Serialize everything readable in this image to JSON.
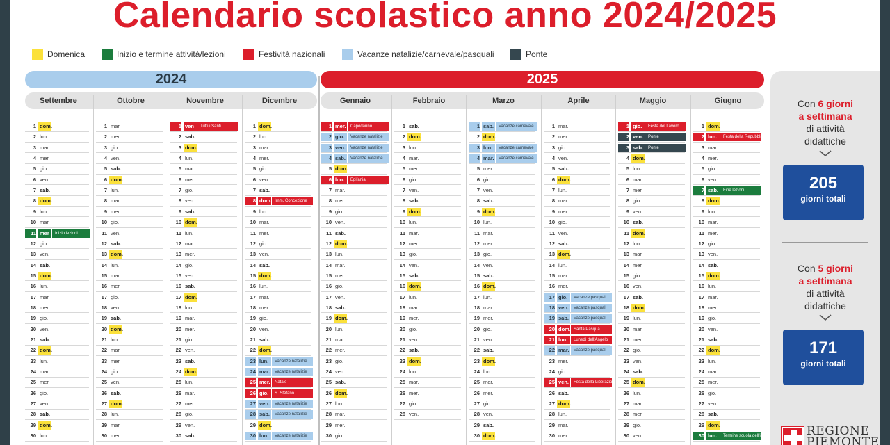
{
  "title": "Calendario scolastico anno 2024/2025",
  "legend": [
    {
      "label": "Domenica",
      "color": "#fbe13b",
      "x": 32
    },
    {
      "label": "Inizio e termine attività/lezioni",
      "color": "#1b7c3d",
      "x": 132
    },
    {
      "label": "Festività nazionali",
      "color": "#dc1e2b",
      "x": 336
    },
    {
      "label": "Vacanze natalizie/carnevale/pasquali",
      "color": "#a9cdec",
      "x": 478
    },
    {
      "label": "Ponte",
      "color": "#35474f",
      "x": 720
    }
  ],
  "years": {
    "y2024": "2024",
    "y2025": "2025"
  },
  "months": [
    {
      "name": "Settembre",
      "year": 2024,
      "m": 9,
      "days": [
        [
          1,
          "dom."
        ],
        [
          2,
          "lun."
        ],
        [
          3,
          "mar."
        ],
        [
          4,
          "mer."
        ],
        [
          5,
          "gio."
        ],
        [
          6,
          "ven."
        ],
        [
          7,
          "sab."
        ],
        [
          8,
          "dom."
        ],
        [
          9,
          "lun."
        ],
        [
          10,
          "mar."
        ],
        [
          11,
          "mer",
          "Inizio lezioni",
          "green"
        ],
        [
          12,
          "gio."
        ],
        [
          13,
          "ven."
        ],
        [
          14,
          "sab."
        ],
        [
          15,
          "dom."
        ],
        [
          16,
          "lun."
        ],
        [
          17,
          "mar."
        ],
        [
          18,
          "mer."
        ],
        [
          19,
          "gio."
        ],
        [
          20,
          "ven."
        ],
        [
          21,
          "sab."
        ],
        [
          22,
          "dom."
        ],
        [
          23,
          "lun."
        ],
        [
          24,
          "mar."
        ],
        [
          25,
          "mer."
        ],
        [
          26,
          "gio."
        ],
        [
          27,
          "ven."
        ],
        [
          28,
          "sab."
        ],
        [
          29,
          "dom."
        ],
        [
          30,
          "lun."
        ]
      ]
    },
    {
      "name": "Ottobre",
      "year": 2024,
      "m": 10,
      "days": [
        [
          1,
          "mar."
        ],
        [
          2,
          "mer."
        ],
        [
          3,
          "gio."
        ],
        [
          4,
          "ven."
        ],
        [
          5,
          "sab."
        ],
        [
          6,
          "dom."
        ],
        [
          7,
          "lun."
        ],
        [
          8,
          "mar."
        ],
        [
          9,
          "mer."
        ],
        [
          10,
          "gio."
        ],
        [
          11,
          "ven."
        ],
        [
          12,
          "sab."
        ],
        [
          13,
          "dom."
        ],
        [
          14,
          "lun."
        ],
        [
          15,
          "mar."
        ],
        [
          16,
          "mer."
        ],
        [
          17,
          "gio."
        ],
        [
          18,
          "ven."
        ],
        [
          19,
          "sab."
        ],
        [
          20,
          "dom."
        ],
        [
          21,
          "lun."
        ],
        [
          22,
          "mar."
        ],
        [
          23,
          "mer."
        ],
        [
          24,
          "gio."
        ],
        [
          25,
          "ven."
        ],
        [
          26,
          "sab."
        ],
        [
          27,
          "dom."
        ],
        [
          28,
          "lun."
        ],
        [
          29,
          "mar."
        ],
        [
          30,
          "mer."
        ]
      ]
    },
    {
      "name": "Novembre",
      "year": 2024,
      "m": 11,
      "days": [
        [
          1,
          "ven",
          "Tutti i Santi",
          "red"
        ],
        [
          2,
          "sab."
        ],
        [
          3,
          "dom."
        ],
        [
          4,
          "lun."
        ],
        [
          5,
          "mar."
        ],
        [
          6,
          "mer."
        ],
        [
          7,
          "gio."
        ],
        [
          8,
          "ven."
        ],
        [
          9,
          "sab."
        ],
        [
          10,
          "dom."
        ],
        [
          11,
          "lun."
        ],
        [
          12,
          "mar."
        ],
        [
          13,
          "mer."
        ],
        [
          14,
          "gio."
        ],
        [
          15,
          "ven."
        ],
        [
          16,
          "sab."
        ],
        [
          17,
          "dom."
        ],
        [
          18,
          "lun."
        ],
        [
          19,
          "mar."
        ],
        [
          20,
          "mer."
        ],
        [
          21,
          "gio."
        ],
        [
          22,
          "ven."
        ],
        [
          23,
          "sab."
        ],
        [
          24,
          "dom."
        ],
        [
          25,
          "lun."
        ],
        [
          26,
          "mar."
        ],
        [
          27,
          "mer."
        ],
        [
          28,
          "gio."
        ],
        [
          29,
          "ven."
        ],
        [
          30,
          "sab."
        ]
      ]
    },
    {
      "name": "Dicembre",
      "year": 2024,
      "m": 12,
      "days": [
        [
          1,
          "dom."
        ],
        [
          2,
          "lun."
        ],
        [
          3,
          "mar."
        ],
        [
          4,
          "mer."
        ],
        [
          5,
          "gio."
        ],
        [
          6,
          "ven."
        ],
        [
          7,
          "sab."
        ],
        [
          8,
          "dom.",
          "Imm. Concezione",
          "red"
        ],
        [
          9,
          "lun."
        ],
        [
          10,
          "mar."
        ],
        [
          11,
          "mer."
        ],
        [
          12,
          "gio."
        ],
        [
          13,
          "ven."
        ],
        [
          14,
          "sab."
        ],
        [
          15,
          "dom."
        ],
        [
          16,
          "lun."
        ],
        [
          17,
          "mar."
        ],
        [
          18,
          "mer."
        ],
        [
          19,
          "gio."
        ],
        [
          20,
          "ven."
        ],
        [
          21,
          "sab."
        ],
        [
          22,
          "dom."
        ],
        [
          23,
          "lun.",
          "Vacanze natalizie",
          "blue"
        ],
        [
          24,
          "mar.",
          "Vacanze natalizie",
          "blue"
        ],
        [
          25,
          "mer.",
          "Natale",
          "red"
        ],
        [
          26,
          "gio.",
          "S. Stefano",
          "red"
        ],
        [
          27,
          "ven.",
          "Vacanze natalizie",
          "blue"
        ],
        [
          28,
          "sab.",
          "Vacanze natalizie",
          "blue"
        ],
        [
          29,
          "dom."
        ],
        [
          30,
          "lun.",
          "Vacanze natalizie",
          "blue"
        ]
      ]
    },
    {
      "name": "Gennaio",
      "year": 2025,
      "m": 1,
      "days": [
        [
          1,
          "mer.",
          "Capodanno",
          "red"
        ],
        [
          2,
          "gio.",
          "Vacanze natalizie",
          "blue"
        ],
        [
          3,
          "ven.",
          "Vacanze natalizie",
          "blue"
        ],
        [
          4,
          "sab.",
          "Vacanze natalizie",
          "blue"
        ],
        [
          5,
          "dom."
        ],
        [
          6,
          "lun.",
          "Epifania",
          "red"
        ],
        [
          7,
          "mar."
        ],
        [
          8,
          "mer."
        ],
        [
          9,
          "gio."
        ],
        [
          10,
          "ven."
        ],
        [
          11,
          "sab."
        ],
        [
          12,
          "dom."
        ],
        [
          13,
          "lun."
        ],
        [
          14,
          "mar."
        ],
        [
          15,
          "mer."
        ],
        [
          16,
          "gio."
        ],
        [
          17,
          "ven."
        ],
        [
          18,
          "sab."
        ],
        [
          19,
          "dom."
        ],
        [
          20,
          "lun."
        ],
        [
          21,
          "mar."
        ],
        [
          22,
          "mer."
        ],
        [
          23,
          "gio."
        ],
        [
          24,
          "ven."
        ],
        [
          25,
          "sab."
        ],
        [
          26,
          "dom."
        ],
        [
          27,
          "lun."
        ],
        [
          28,
          "mar."
        ],
        [
          29,
          "mer."
        ],
        [
          30,
          "gio."
        ]
      ]
    },
    {
      "name": "Febbraio",
      "year": 2025,
      "m": 2,
      "days": [
        [
          1,
          "sab."
        ],
        [
          2,
          "dom."
        ],
        [
          3,
          "lun."
        ],
        [
          4,
          "mar."
        ],
        [
          5,
          "mer."
        ],
        [
          6,
          "gio."
        ],
        [
          7,
          "ven."
        ],
        [
          8,
          "sab."
        ],
        [
          9,
          "dom."
        ],
        [
          10,
          "lun."
        ],
        [
          11,
          "mar."
        ],
        [
          12,
          "mer."
        ],
        [
          13,
          "gio."
        ],
        [
          14,
          "ven."
        ],
        [
          15,
          "sab."
        ],
        [
          16,
          "dom."
        ],
        [
          17,
          "lun."
        ],
        [
          18,
          "mar."
        ],
        [
          19,
          "mer."
        ],
        [
          20,
          "gio."
        ],
        [
          21,
          "ven."
        ],
        [
          22,
          "sab."
        ],
        [
          23,
          "dom."
        ],
        [
          24,
          "lun."
        ],
        [
          25,
          "mar."
        ],
        [
          26,
          "mer."
        ],
        [
          27,
          "gio."
        ],
        [
          28,
          "ven."
        ]
      ]
    },
    {
      "name": "Marzo",
      "year": 2025,
      "m": 3,
      "days": [
        [
          1,
          "sab.",
          "Vacanze carnevale",
          "blue"
        ],
        [
          2,
          "dom."
        ],
        [
          3,
          "lun.",
          "Vacanze carnevale",
          "blue"
        ],
        [
          4,
          "mar.",
          "Vacanze carnevale",
          "blue"
        ],
        [
          5,
          "mer."
        ],
        [
          6,
          "gio."
        ],
        [
          7,
          "ven."
        ],
        [
          8,
          "sab."
        ],
        [
          9,
          "dom."
        ],
        [
          10,
          "lun."
        ],
        [
          11,
          "mar."
        ],
        [
          12,
          "mer."
        ],
        [
          13,
          "gio."
        ],
        [
          14,
          "ven."
        ],
        [
          15,
          "sab."
        ],
        [
          16,
          "dom."
        ],
        [
          17,
          "lun."
        ],
        [
          18,
          "mar."
        ],
        [
          19,
          "mer."
        ],
        [
          20,
          "gio."
        ],
        [
          21,
          "ven."
        ],
        [
          22,
          "sab."
        ],
        [
          23,
          "dom."
        ],
        [
          24,
          "lun."
        ],
        [
          25,
          "mar."
        ],
        [
          26,
          "mer."
        ],
        [
          27,
          "gio."
        ],
        [
          28,
          "ven."
        ],
        [
          29,
          "sab."
        ],
        [
          30,
          "dom."
        ]
      ]
    },
    {
      "name": "Aprile",
      "year": 2025,
      "m": 4,
      "days": [
        [
          1,
          "mar."
        ],
        [
          2,
          "mer."
        ],
        [
          3,
          "gio."
        ],
        [
          4,
          "ven."
        ],
        [
          5,
          "sab."
        ],
        [
          6,
          "dom."
        ],
        [
          7,
          "lun."
        ],
        [
          8,
          "mar."
        ],
        [
          9,
          "mer."
        ],
        [
          10,
          "gio."
        ],
        [
          11,
          "ven."
        ],
        [
          12,
          "sab."
        ],
        [
          13,
          "dom."
        ],
        [
          14,
          "lun."
        ],
        [
          15,
          "mar."
        ],
        [
          16,
          "mer."
        ],
        [
          17,
          "gio.",
          "Vacanze pasquali",
          "blue"
        ],
        [
          18,
          "ven.",
          "Vacanze pasquali",
          "blue"
        ],
        [
          19,
          "sab.",
          "Vacanze pasquali",
          "blue"
        ],
        [
          20,
          "dom.",
          "Santa Pasqua",
          "red"
        ],
        [
          21,
          "lun.",
          "Lunedì dell'Angelo",
          "red"
        ],
        [
          22,
          "mar.",
          "Vacanze pasquali",
          "blue"
        ],
        [
          23,
          "mer."
        ],
        [
          24,
          "gio."
        ],
        [
          25,
          "ven.",
          "Festa della Liberazione",
          "red"
        ],
        [
          26,
          "sab."
        ],
        [
          27,
          "dom."
        ],
        [
          28,
          "lun."
        ],
        [
          29,
          "mar."
        ],
        [
          30,
          "mer."
        ]
      ]
    },
    {
      "name": "Maggio",
      "year": 2025,
      "m": 5,
      "days": [
        [
          1,
          "gio.",
          "Festa del Lavoro",
          "red"
        ],
        [
          2,
          "ven.",
          "Ponte",
          "dark"
        ],
        [
          3,
          "sab.",
          "Ponte",
          "dark"
        ],
        [
          4,
          "dom."
        ],
        [
          5,
          "lun."
        ],
        [
          6,
          "mar."
        ],
        [
          7,
          "mer."
        ],
        [
          8,
          "gio."
        ],
        [
          9,
          "ven."
        ],
        [
          10,
          "sab."
        ],
        [
          11,
          "dom."
        ],
        [
          12,
          "lun."
        ],
        [
          13,
          "mar."
        ],
        [
          14,
          "mer."
        ],
        [
          15,
          "gio."
        ],
        [
          16,
          "ven."
        ],
        [
          17,
          "sab."
        ],
        [
          18,
          "dom."
        ],
        [
          19,
          "lun."
        ],
        [
          20,
          "mar."
        ],
        [
          21,
          "mer."
        ],
        [
          22,
          "gio."
        ],
        [
          23,
          "ven."
        ],
        [
          24,
          "sab."
        ],
        [
          25,
          "dom."
        ],
        [
          26,
          "lun."
        ],
        [
          27,
          "mar."
        ],
        [
          28,
          "mer."
        ],
        [
          29,
          "gio."
        ],
        [
          30,
          "ven."
        ]
      ]
    },
    {
      "name": "Giugno",
      "year": 2025,
      "m": 6,
      "days": [
        [
          1,
          "dom."
        ],
        [
          2,
          "lun.",
          "Festa della Repubblica",
          "red"
        ],
        [
          3,
          "mar."
        ],
        [
          4,
          "mer."
        ],
        [
          5,
          "gio."
        ],
        [
          6,
          "ven."
        ],
        [
          7,
          "sab.",
          "Fine lezioni",
          "green"
        ],
        [
          8,
          "dom."
        ],
        [
          9,
          "lun."
        ],
        [
          10,
          "mar."
        ],
        [
          11,
          "mer."
        ],
        [
          12,
          "gio."
        ],
        [
          13,
          "ven."
        ],
        [
          14,
          "sab."
        ],
        [
          15,
          "dom."
        ],
        [
          16,
          "lun."
        ],
        [
          17,
          "mar."
        ],
        [
          18,
          "mer."
        ],
        [
          19,
          "gio."
        ],
        [
          20,
          "ven."
        ],
        [
          21,
          "sab."
        ],
        [
          22,
          "dom."
        ],
        [
          23,
          "lun."
        ],
        [
          24,
          "mar."
        ],
        [
          25,
          "mer."
        ],
        [
          26,
          "gio."
        ],
        [
          27,
          "ven."
        ],
        [
          28,
          "sab."
        ],
        [
          29,
          "dom."
        ],
        [
          30,
          "lun.",
          "Termine scuola dell'infanzia",
          "green"
        ]
      ]
    }
  ],
  "side": {
    "six_pre": "Con ",
    "six_num": "6 giorni",
    "six_red": "a settimana",
    "six_post1": "di attività",
    "six_post2": "didattiche",
    "six_total": "205",
    "six_total_label": "giorni totali",
    "five_pre": "Con ",
    "five_num": "5 giorni",
    "five_red": "a settimana",
    "five_post1": "di attività",
    "five_post2": "didattiche",
    "five_total": "171",
    "five_total_label": "giorni totali",
    "logo_line1": "REGIONE",
    "logo_line2": "PIEMONTE"
  }
}
